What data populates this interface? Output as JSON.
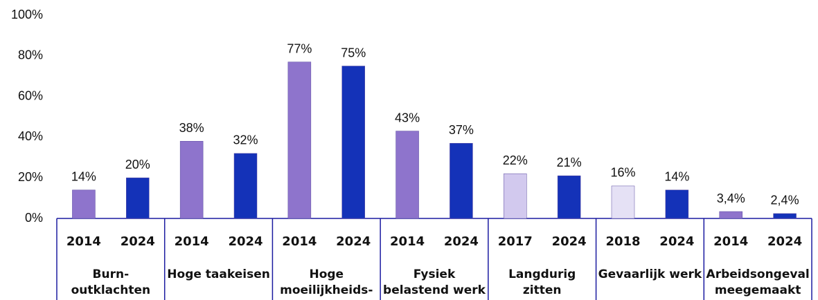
{
  "chart_data": {
    "type": "bar",
    "categories": [
      "2014",
      "2024",
      "2014",
      "2024",
      "2014",
      "2024",
      "2014",
      "2024",
      "2017",
      "2024",
      "2018",
      "2024",
      "2014",
      "2024"
    ],
    "group_labels": [
      [
        "Burn-",
        "outklachten"
      ],
      [
        "Hoge taakeisen"
      ],
      [
        "Hoge",
        "moeilijkheids-"
      ],
      [
        "Fysiek",
        "belastend werk"
      ],
      [
        "Langdurig",
        "zitten"
      ],
      [
        "Gevaarlijk werk"
      ],
      [
        "Arbeidsongeval",
        "meegemaakt"
      ]
    ],
    "values": [
      14,
      20,
      38,
      32,
      77,
      75,
      43,
      37,
      22,
      21,
      16,
      14,
      3.4,
      2.4
    ],
    "value_labels": [
      "14%",
      "20%",
      "38%",
      "32%",
      "77%",
      "75%",
      "43%",
      "37%",
      "22%",
      "21%",
      "16%",
      "14%",
      "3,4%",
      "2,4%"
    ],
    "colors": [
      "#8e74cc",
      "#1432b8",
      "#8e74cc",
      "#1432b8",
      "#8e74cc",
      "#1432b8",
      "#8e74cc",
      "#1432b8",
      "#d2c9ee",
      "#1432b8",
      "#e5e1f5",
      "#1432b8",
      "#8e74cc",
      "#1432b8"
    ],
    "ylim": [
      0,
      100
    ],
    "yticks": [
      {
        "value": 0,
        "label": "0%"
      },
      {
        "value": 20,
        "label": "20%"
      },
      {
        "value": 40,
        "label": "40%"
      },
      {
        "value": 60,
        "label": "60%"
      },
      {
        "value": 80,
        "label": "80%"
      },
      {
        "value": 100,
        "label": "100%"
      }
    ]
  }
}
